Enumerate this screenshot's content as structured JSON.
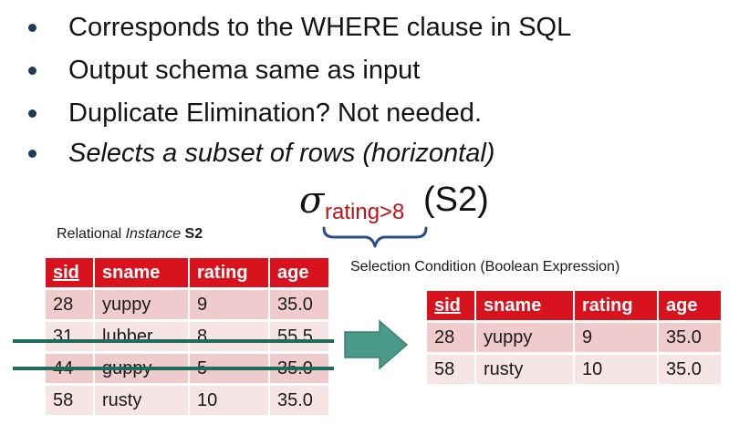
{
  "bullets": [
    {
      "text": "Corresponds to the WHERE clause in SQL"
    },
    {
      "text": "Output schema same as input"
    },
    {
      "text": "Duplicate Elimination?  Not needed."
    },
    {
      "text": "Selects a subset of rows (horizontal)"
    }
  ],
  "formula": {
    "operator": "σ",
    "condition": "rating>8",
    "argument": "(S2)"
  },
  "captions": {
    "instance_prefix": "Relational ",
    "instance_italic": "Instance",
    "instance_name": "S2",
    "selection_condition": "Selection Condition (Boolean Expression)"
  },
  "input_table": {
    "columns": [
      "sid",
      "sname",
      "rating",
      "age"
    ],
    "rows": [
      {
        "sid": "28",
        "sname": "yuppy",
        "rating": "9",
        "age": "35.0",
        "struck": false
      },
      {
        "sid": "31",
        "sname": "lubber",
        "rating": "8",
        "age": "55.5",
        "struck": true
      },
      {
        "sid": "44",
        "sname": "guppy",
        "rating": "5",
        "age": "35.0",
        "struck": true
      },
      {
        "sid": "58",
        "sname": "rusty",
        "rating": "10",
        "age": "35.0",
        "struck": false
      }
    ]
  },
  "result_table": {
    "columns": [
      "sid",
      "sname",
      "rating",
      "age"
    ],
    "rows": [
      {
        "sid": "28",
        "sname": "yuppy",
        "rating": "9",
        "age": "35.0"
      },
      {
        "sid": "58",
        "sname": "rusty",
        "rating": "10",
        "age": "35.0"
      }
    ]
  },
  "colors": {
    "header_red": "#d9131d",
    "row_pink": "#f0cbcc",
    "row_light": "#f7e4e4",
    "strike_teal": "#1f6b5e",
    "arrow_teal": "#4a9a8a",
    "brace_blue": "#2b4f86",
    "condition_red": "#c0111a"
  },
  "icons": {
    "arrow": "right-arrow-icon",
    "brace": "curly-brace-icon"
  }
}
